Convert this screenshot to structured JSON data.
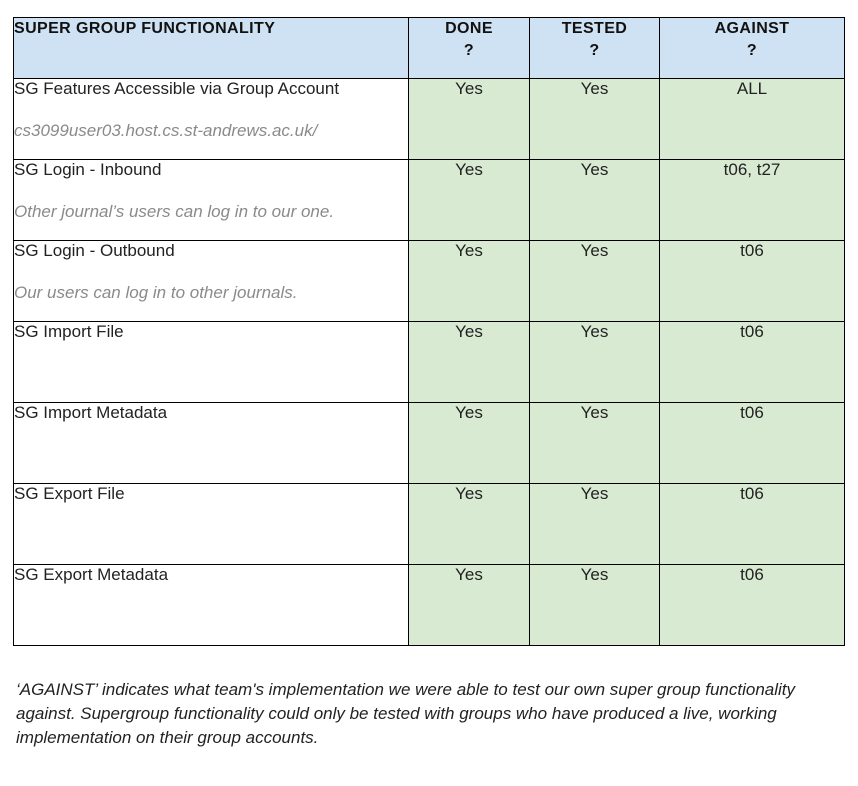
{
  "table": {
    "headers": [
      {
        "label": "SUPER GROUP FUNCTIONALITY",
        "sub": ""
      },
      {
        "label": "DONE",
        "sub": "?"
      },
      {
        "label": "TESTED",
        "sub": "?"
      },
      {
        "label": "AGAINST",
        "sub": "?"
      }
    ],
    "rows": [
      {
        "title": "SG Features Accessible via Group Account",
        "note": "cs3099user03.host.cs.st-andrews.ac.uk/",
        "done": "Yes",
        "tested": "Yes",
        "against": "ALL"
      },
      {
        "title": "SG Login - Inbound",
        "note": "Other journal’s users can log in to our one.",
        "done": "Yes",
        "tested": "Yes",
        "against": "t06, t27"
      },
      {
        "title": "SG Login - Outbound",
        "note": "Our users can log in to other journals.",
        "done": "Yes",
        "tested": "Yes",
        "against": "t06"
      },
      {
        "title": "SG Import File",
        "note": "",
        "done": "Yes",
        "tested": "Yes",
        "against": "t06"
      },
      {
        "title": "SG Import Metadata",
        "note": "",
        "done": "Yes",
        "tested": "Yes",
        "against": "t06"
      },
      {
        "title": "SG Export File",
        "note": "",
        "done": "Yes",
        "tested": "Yes",
        "against": "t06"
      },
      {
        "title": "SG Export Metadata",
        "note": "",
        "done": "Yes",
        "tested": "Yes",
        "against": "t06"
      }
    ]
  },
  "footnote": "‘AGAINST’  indicates what team's implementation we were able to test our own super group functionality against. Supergroup functionality could only be tested with groups who have produced a live, working implementation on their group accounts.",
  "colors": {
    "header_bg": "#cfe2f3",
    "value_bg": "#d9ead3",
    "note_text": "#8a8a8a"
  }
}
